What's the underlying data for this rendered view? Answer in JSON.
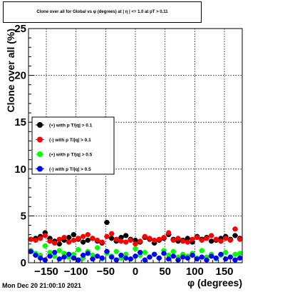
{
  "chart_data": {
    "type": "scatter",
    "title": "Clone  over all for Global vs φ (degrees) at | η | <= 1.0 at pT > 0.11",
    "xlabel": "φ (degrees)",
    "ylabel": "Clone  over all (%)",
    "xlim": [
      -180,
      180
    ],
    "ylim": [
      0,
      25
    ],
    "xticks": [
      -150,
      -100,
      -50,
      0,
      50,
      100,
      150
    ],
    "xtick_labels": [
      "−150",
      "−100",
      "−50",
      "0",
      "50",
      "100",
      "150"
    ],
    "yticks": [
      0,
      5,
      10,
      15,
      20,
      25
    ],
    "ytick_labels": [
      "0",
      "5",
      "10",
      "15",
      "20",
      "25"
    ],
    "grid": true,
    "legend_position": "middle-left",
    "series": [
      {
        "name": "(+) with p T/|q| > 0.1",
        "color": "#000000",
        "x": [
          -176,
          -168,
          -160,
          -152,
          -144,
          -136,
          -128,
          -120,
          -112,
          -104,
          -96,
          -88,
          -80,
          -72,
          -64,
          -56,
          -48,
          -40,
          -32,
          -24,
          -16,
          -8,
          0,
          8,
          16,
          24,
          32,
          40,
          48,
          56,
          64,
          72,
          80,
          88,
          96,
          104,
          112,
          120,
          128,
          136,
          144,
          152,
          160,
          168,
          176
        ],
        "y": [
          2.5,
          2.6,
          2.8,
          3.2,
          2.6,
          2.3,
          2.0,
          2.4,
          2.7,
          3.0,
          2.5,
          2.2,
          2.4,
          2.6,
          2.3,
          2.1,
          4.3,
          2.6,
          2.3,
          2.7,
          2.9,
          2.5,
          2.4,
          2.2,
          2.7,
          2.5,
          2.1,
          2.4,
          2.6,
          3.0,
          2.5,
          2.3,
          2.4,
          2.6,
          2.2,
          2.8,
          2.5,
          2.7,
          2.3,
          2.4,
          2.6,
          2.8,
          2.5,
          2.9,
          2.6
        ]
      },
      {
        "name": "(-) with p T/|q| > 0.1",
        "color": "#ff0000",
        "x": [
          -176,
          -168,
          -160,
          -152,
          -144,
          -136,
          -128,
          -120,
          -112,
          -104,
          -96,
          -88,
          -80,
          -72,
          -64,
          -56,
          -48,
          -40,
          -32,
          -24,
          -16,
          -8,
          0,
          8,
          16,
          24,
          32,
          40,
          48,
          56,
          64,
          72,
          80,
          88,
          96,
          104,
          112,
          120,
          128,
          136,
          144,
          152,
          160,
          168,
          176
        ],
        "y": [
          2.5,
          2.4,
          2.6,
          2.9,
          2.3,
          2.1,
          2.5,
          2.7,
          2.2,
          2.4,
          2.6,
          2.8,
          3.0,
          2.6,
          2.4,
          2.2,
          2.8,
          3.1,
          2.5,
          2.3,
          2.2,
          2.4,
          2.0,
          2.3,
          2.8,
          2.6,
          2.4,
          2.5,
          2.7,
          3.2,
          2.4,
          2.6,
          2.3,
          2.2,
          2.5,
          2.7,
          2.4,
          2.6,
          2.9,
          2.5,
          2.3,
          2.6,
          2.4,
          3.6,
          2.5
        ]
      },
      {
        "name": "(+) with p T/|q| > 0.5",
        "color": "#00ff00",
        "x": [
          -176,
          -168,
          -160,
          -152,
          -144,
          -136,
          -128,
          -120,
          -112,
          -104,
          -96,
          -88,
          -80,
          -72,
          -64,
          -56,
          -48,
          -40,
          -32,
          -24,
          -16,
          -8,
          0,
          8,
          16,
          24,
          32,
          40,
          48,
          56,
          64,
          72,
          80,
          88,
          96,
          104,
          112,
          120,
          128,
          136,
          144,
          152,
          160,
          168,
          176
        ],
        "y": [
          1.3,
          1.0,
          0.8,
          1.8,
          1.1,
          0.7,
          1.3,
          1.0,
          0.6,
          0.9,
          1.4,
          0.5,
          1.2,
          0.8,
          1.6,
          0.4,
          1.0,
          0.7,
          1.2,
          0.5,
          0.9,
          0.4,
          1.5,
          0.8,
          1.1,
          0.6,
          0.9,
          0.5,
          1.3,
          0.8,
          1.2,
          0.6,
          0.9,
          0.7,
          1.0,
          0.5,
          1.3,
          0.6,
          0.9,
          0.4,
          0.8,
          1.1,
          0.6,
          0.9,
          1.0
        ]
      },
      {
        "name": "(-) with p T/|q| > 0.5",
        "color": "#0000ff",
        "x": [
          -176,
          -168,
          -160,
          -152,
          -144,
          -136,
          -128,
          -120,
          -112,
          -104,
          -96,
          -88,
          -80,
          -72,
          -64,
          -56,
          -48,
          -40,
          -32,
          -24,
          -16,
          -8,
          0,
          8,
          16,
          24,
          32,
          40,
          48,
          56,
          64,
          72,
          80,
          88,
          96,
          104,
          112,
          120,
          128,
          136,
          144,
          152,
          160,
          168,
          176
        ],
        "y": [
          1.2,
          0.8,
          0.5,
          0.3,
          0.7,
          1.1,
          0.4,
          0.6,
          0.9,
          0.5,
          0.3,
          0.8,
          1.0,
          0.4,
          0.7,
          0.5,
          1.2,
          0.6,
          0.3,
          0.8,
          0.5,
          0.4,
          0.7,
          1.1,
          0.3,
          0.6,
          0.9,
          0.5,
          1.0,
          0.4,
          0.7,
          0.3,
          0.6,
          0.5,
          0.8,
          0.4,
          0.6,
          0.3,
          0.7,
          0.5,
          0.9,
          0.4,
          0.6,
          0.3,
          0.5
        ]
      }
    ]
  },
  "footer": {
    "timestamp": "Mon Dec 20 21:00:10 2021"
  }
}
